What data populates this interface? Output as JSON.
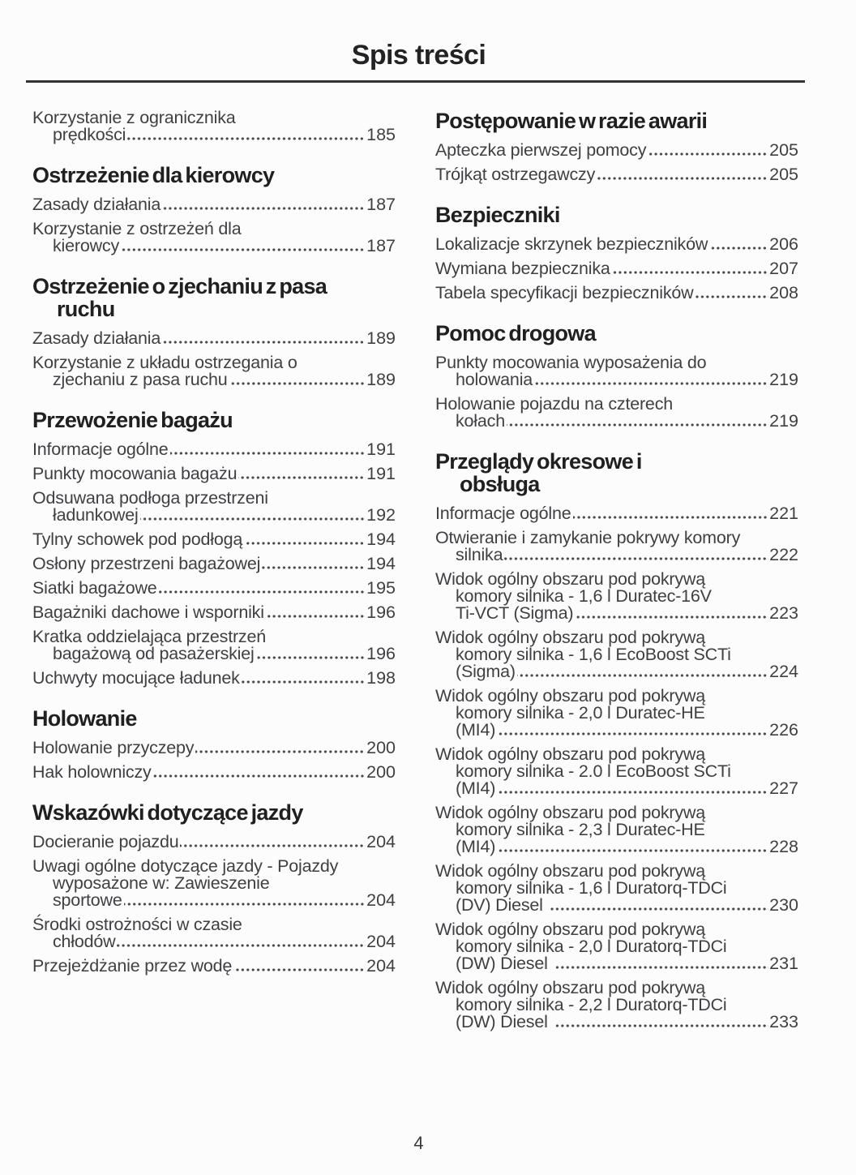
{
  "page": {
    "title": "Spis treści",
    "footer_page_number": "4"
  },
  "colors": {
    "background": "#fcfcfc",
    "body_text": "#3f4043",
    "heading_text": "#202022",
    "rule": "#333335",
    "dot_leader": "#47484b"
  },
  "toc": {
    "columns": [
      {
        "blocks": [
          {
            "type": "entries",
            "items": [
              {
                "lines": [
                  "Korzystanie z ogranicznika",
                  "prędkości"
                ],
                "page": "185"
              }
            ]
          },
          {
            "type": "section",
            "title_lines": [
              "Ostrzeżenie dla kierowcy"
            ],
            "items": [
              {
                "lines": [
                  "Zasady działania"
                ],
                "page": "187"
              },
              {
                "lines": [
                  "Korzystanie z ostrzeżeń dla",
                  "kierowcy"
                ],
                "page": "187"
              }
            ]
          },
          {
            "type": "section",
            "title_lines": [
              "Ostrzeżenie o zjechaniu z pasa",
              "ruchu"
            ],
            "items": [
              {
                "lines": [
                  "Zasady działania"
                ],
                "page": "189"
              },
              {
                "lines": [
                  "Korzystanie z układu ostrzegania o",
                  "zjechaniu z pasa ruchu"
                ],
                "page": "189"
              }
            ]
          },
          {
            "type": "section",
            "title_lines": [
              "Przewożenie bagażu"
            ],
            "items": [
              {
                "lines": [
                  "Informacje ogólne"
                ],
                "page": "191"
              },
              {
                "lines": [
                  "Punkty mocowania bagażu"
                ],
                "page": "191"
              },
              {
                "lines": [
                  "Odsuwana podłoga przestrzeni",
                  "ładunkowej"
                ],
                "page": "192"
              },
              {
                "lines": [
                  "Tylny schowek pod podłogą"
                ],
                "page": "194"
              },
              {
                "lines": [
                  "Osłony przestrzeni bagażowej"
                ],
                "page": "194"
              },
              {
                "lines": [
                  "Siatki bagażowe"
                ],
                "page": "195"
              },
              {
                "lines": [
                  "Bagażniki dachowe i wsporniki"
                ],
                "page": "196"
              },
              {
                "lines": [
                  "Kratka oddzielająca przestrzeń",
                  "bagażową od pasażerskiej"
                ],
                "page": "196"
              },
              {
                "lines": [
                  "Uchwyty mocujące ładunek"
                ],
                "page": "198"
              }
            ]
          },
          {
            "type": "section",
            "title_lines": [
              "Holowanie"
            ],
            "items": [
              {
                "lines": [
                  "Holowanie przyczepy"
                ],
                "page": "200"
              },
              {
                "lines": [
                  "Hak holowniczy"
                ],
                "page": "200"
              }
            ]
          },
          {
            "type": "section",
            "title_lines": [
              "Wskazówki dotyczące jazdy"
            ],
            "items": [
              {
                "lines": [
                  "Docieranie pojazdu"
                ],
                "page": "204"
              },
              {
                "lines": [
                  "Uwagi ogólne dotyczące jazdy - Pojazdy",
                  "wyposażone w: Zawieszenie",
                  "sportowe"
                ],
                "page": "204"
              },
              {
                "lines": [
                  "Środki ostrożności w czasie",
                  "chłodów"
                ],
                "page": "204"
              },
              {
                "lines": [
                  "Przejeżdżanie przez wodę"
                ],
                "page": "204"
              }
            ]
          }
        ]
      },
      {
        "blocks": [
          {
            "type": "section",
            "title_lines": [
              "Postępowanie w razie awarii"
            ],
            "items": [
              {
                "lines": [
                  "Apteczka pierwszej pomocy"
                ],
                "page": "205"
              },
              {
                "lines": [
                  "Trójkąt ostrzegawczy"
                ],
                "page": "205"
              }
            ]
          },
          {
            "type": "section",
            "title_lines": [
              "Bezpieczniki"
            ],
            "items": [
              {
                "lines": [
                  "Lokalizacje skrzynek bezpieczników"
                ],
                "page": "206"
              },
              {
                "lines": [
                  "Wymiana bezpiecznika"
                ],
                "page": "207"
              },
              {
                "lines": [
                  "Tabela specyfikacji bezpieczników"
                ],
                "page": "208"
              }
            ]
          },
          {
            "type": "section",
            "title_lines": [
              "Pomoc drogowa"
            ],
            "items": [
              {
                "lines": [
                  "Punkty mocowania wyposażenia do",
                  "holowania"
                ],
                "page": "219"
              },
              {
                "lines": [
                  "Holowanie pojazdu na czterech",
                  "kołach"
                ],
                "page": "219"
              }
            ]
          },
          {
            "type": "section",
            "title_lines": [
              "Przeglądy okresowe i",
              "obsługa"
            ],
            "items": [
              {
                "lines": [
                  "Informacje ogólne"
                ],
                "page": "221"
              },
              {
                "lines": [
                  "Otwieranie i zamykanie pokrywy komory",
                  "silnika"
                ],
                "page": "222"
              },
              {
                "lines": [
                  "Widok ogólny obszaru pod pokrywą",
                  "komory silnika - 1,6 l Duratec-16V",
                  "Ti-VCT (Sigma)"
                ],
                "page": "223"
              },
              {
                "lines": [
                  "Widok ogólny obszaru pod pokrywą",
                  "komory silnika - 1,6 l EcoBoost SCTi",
                  "(Sigma)"
                ],
                "page": "224"
              },
              {
                "lines": [
                  "Widok ogólny obszaru pod pokrywą",
                  "komory silnika - 2,0 l Duratec-HE",
                  "(MI4)"
                ],
                "page": "226"
              },
              {
                "lines": [
                  "Widok ogólny obszaru pod pokrywą",
                  "komory silnika - 2.0 l EcoBoost SCTi",
                  "(MI4)"
                ],
                "page": "227"
              },
              {
                "lines": [
                  "Widok ogólny obszaru pod pokrywą",
                  "komory silnika - 2,3 l Duratec-HE",
                  "(MI4)"
                ],
                "page": "228"
              },
              {
                "lines": [
                  "Widok ogólny obszaru pod pokrywą",
                  "komory silnika - 1,6 l Duratorq-TDCi",
                  "(DV) Diesel "
                ],
                "page": "230"
              },
              {
                "lines": [
                  "Widok ogólny obszaru pod pokrywą",
                  "komory silnika - 2,0 l Duratorq-TDCi",
                  "(DW) Diesel "
                ],
                "page": "231"
              },
              {
                "lines": [
                  "Widok ogólny obszaru pod pokrywą",
                  "komory silnika - 2,2 l Duratorq-TDCi",
                  "(DW) Diesel "
                ],
                "page": "233"
              }
            ]
          }
        ]
      }
    ]
  }
}
